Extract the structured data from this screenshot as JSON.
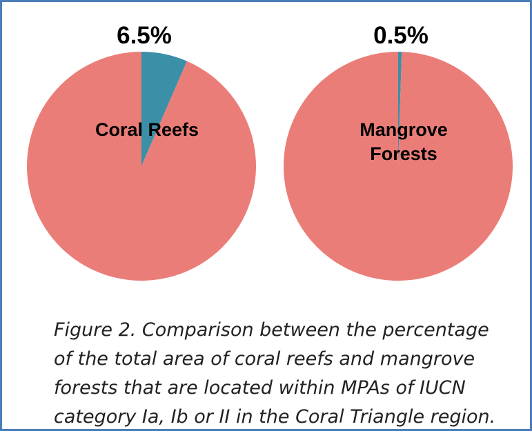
{
  "chart_data": [
    {
      "type": "pie",
      "label": [
        "Coral Reefs"
      ],
      "values": [
        6.5,
        93.5
      ],
      "value_labels": [
        "6.5%",
        null
      ],
      "colors": [
        "#3b90a8",
        "#eb7d78"
      ]
    },
    {
      "type": "pie",
      "label": [
        "Mangrove",
        "Forests"
      ],
      "values": [
        0.5,
        99.5
      ],
      "value_labels": [
        "0.5%",
        null
      ],
      "colors": [
        "#3b90a8",
        "#eb7d78"
      ]
    }
  ],
  "caption": [
    "Figure 2.  Comparison between the percentage",
    "of the total area of coral reefs and mangrove",
    "forests that are located within MPAs of IUCN",
    "category Ia, Ib or II in the Coral Triangle region."
  ]
}
